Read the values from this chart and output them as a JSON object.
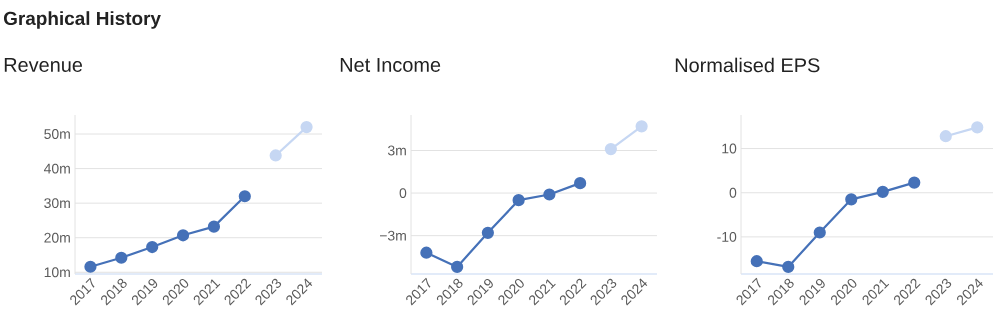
{
  "chart_data": [
    {
      "type": "line",
      "title": "Graphical History",
      "subtitle": "Revenue",
      "categories": [
        "2017",
        "2018",
        "2019",
        "2020",
        "2021",
        "2022",
        "2023",
        "2024"
      ],
      "series": [
        {
          "color": "#4571b8",
          "values": [
            11.6,
            14.2,
            17.3,
            20.7,
            23.2,
            32.0,
            null,
            null
          ]
        },
        {
          "color": "#c6d7f3",
          "values": [
            null,
            null,
            null,
            null,
            null,
            null,
            43.8,
            52.0
          ]
        }
      ],
      "ylim": [
        9.5,
        55.5
      ],
      "yticks": [
        {
          "value": 10,
          "label": "10m"
        },
        {
          "value": 20,
          "label": "20m"
        },
        {
          "value": 30,
          "label": "30m"
        },
        {
          "value": 40,
          "label": "40m"
        },
        {
          "value": 50,
          "label": "50m"
        }
      ],
      "grid": "y",
      "marker": "circle",
      "line_style": "solid"
    },
    {
      "type": "line",
      "title": "Net Income",
      "categories": [
        "2017",
        "2018",
        "2019",
        "2020",
        "2021",
        "2022",
        "2023",
        "2024"
      ],
      "series": [
        {
          "color": "#4571b8",
          "values": [
            -4.2,
            -5.2,
            -2.8,
            -0.5,
            -0.1,
            0.7,
            null,
            null
          ]
        },
        {
          "color": "#c6d7f3",
          "values": [
            null,
            null,
            null,
            null,
            null,
            null,
            3.1,
            4.7
          ]
        }
      ],
      "ylim": [
        -5.7,
        5.5
      ],
      "yticks": [
        {
          "value": -3,
          "label": "−3m"
        },
        0,
        {
          "value": 3,
          "label": "3m"
        }
      ],
      "grid": "y",
      "marker": "circle",
      "line_style": "solid"
    },
    {
      "type": "line",
      "title": "Normalised EPS",
      "categories": [
        "2017",
        "2018",
        "2019",
        "2020",
        "2021",
        "2022",
        "2023",
        "2024"
      ],
      "series": [
        {
          "color": "#4571b8",
          "values": [
            -15.5,
            -16.8,
            -9.0,
            -1.5,
            0.2,
            2.3,
            null,
            null
          ]
        },
        {
          "color": "#c6d7f3",
          "values": [
            null,
            null,
            null,
            null,
            null,
            null,
            12.8,
            14.8
          ]
        }
      ],
      "ylim": [
        -18.4,
        17.6
      ],
      "yticks": [
        -10,
        0,
        10
      ],
      "grid": "y",
      "marker": "circle",
      "line_style": "solid"
    }
  ]
}
